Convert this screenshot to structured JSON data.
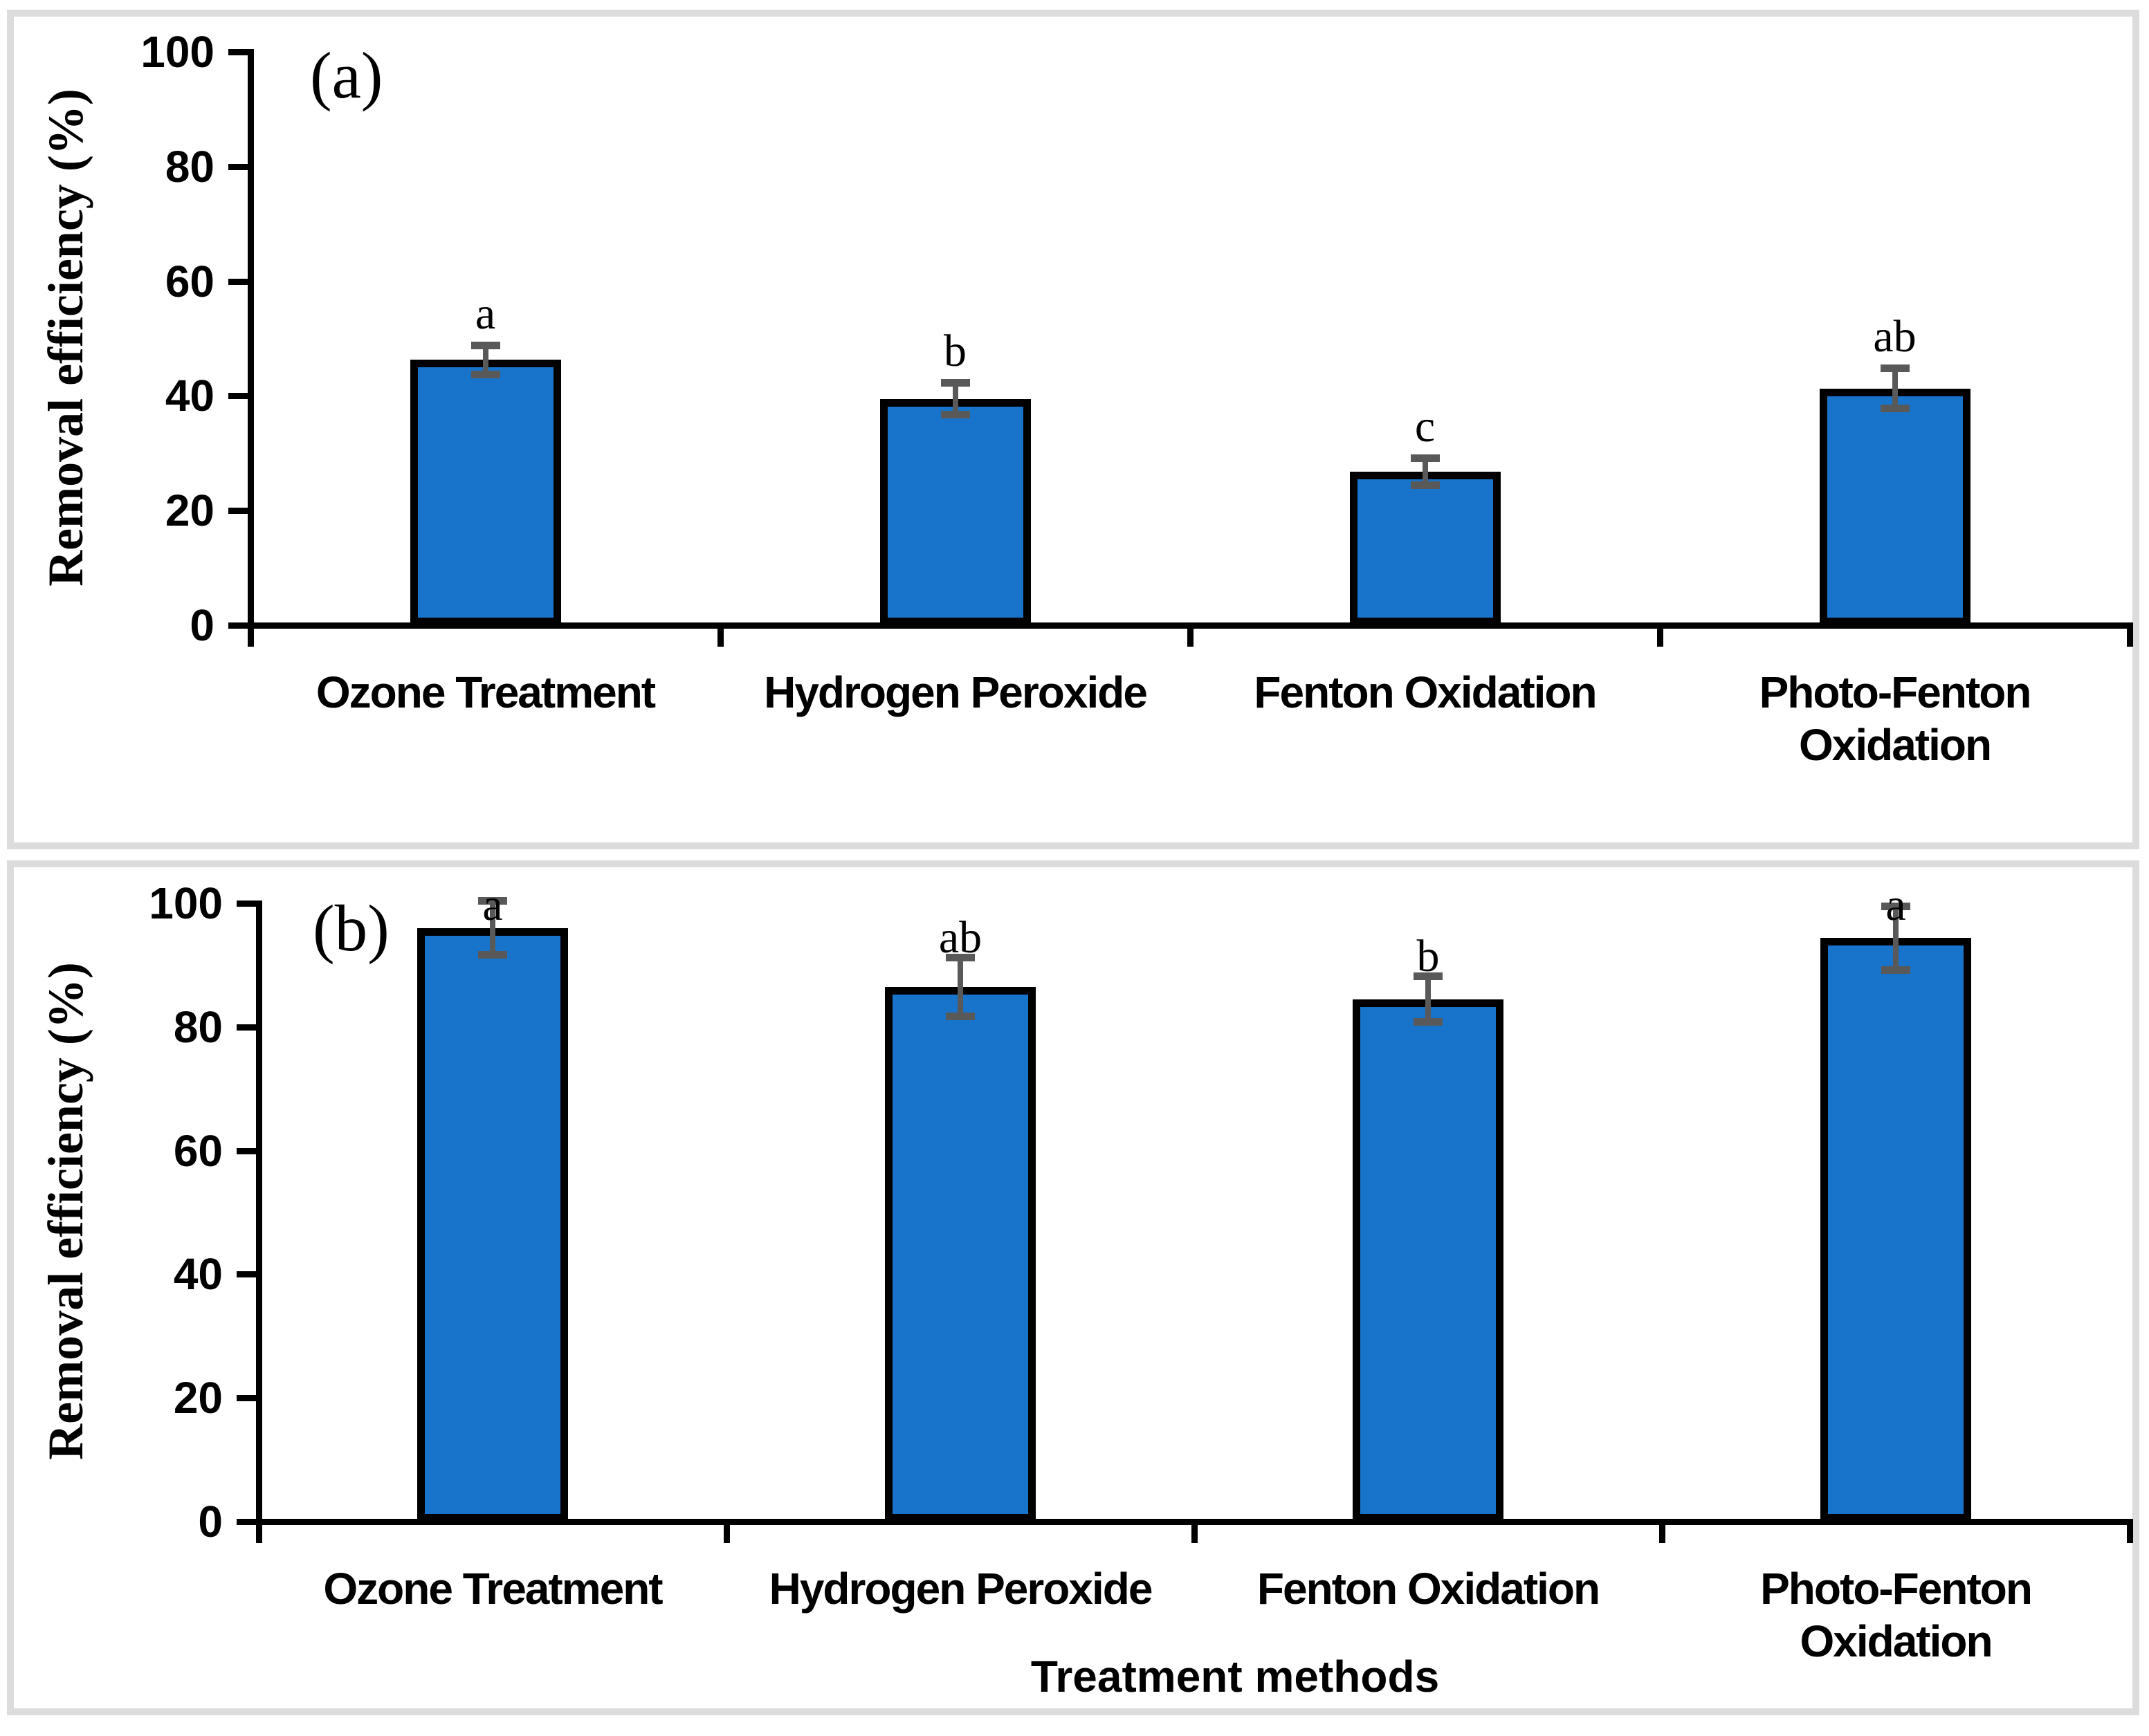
{
  "colors": {
    "bar_fill": "#1874CA",
    "bar_outline": "#000000",
    "error_bar": "#595959",
    "frame_border": "#DCDCDC",
    "axis": "#000000",
    "background": "#FFFFFF"
  },
  "chart_data": [
    {
      "type": "bar",
      "panel_label": "(a)",
      "ylabel": "Removal efficiency (%)",
      "xlabel": "",
      "categories": [
        "Ozone Treatment",
        "Hydrogen Peroxide",
        "Fenton Oxidation",
        "Photo-Fenton Oxidation"
      ],
      "values": [
        46.3,
        39.5,
        26.8,
        41.3
      ],
      "errors": [
        2.6,
        2.8,
        2.4,
        3.6
      ],
      "sig_letters": [
        "a",
        "b",
        "c",
        "ab"
      ],
      "yticks": [
        0,
        20,
        40,
        60,
        80,
        100
      ],
      "ylim": [
        0,
        100
      ],
      "grid": false,
      "legend": null
    },
    {
      "type": "bar",
      "panel_label": "(b)",
      "ylabel": "Removal efficiency (%)",
      "xlabel": "Treatment methods",
      "categories": [
        "Ozone Treatment",
        "Hydrogen Peroxide",
        "Fenton Oxidation",
        "Photo-Fenton Oxidation"
      ],
      "values": [
        96.0,
        86.5,
        84.5,
        94.4
      ],
      "errors": [
        4.4,
        4.8,
        3.7,
        5.2
      ],
      "sig_letters": [
        "a",
        "ab",
        "b",
        "a"
      ],
      "yticks": [
        0,
        20,
        40,
        60,
        80,
        100
      ],
      "ylim": [
        0,
        100
      ],
      "grid": false,
      "legend": null
    }
  ]
}
